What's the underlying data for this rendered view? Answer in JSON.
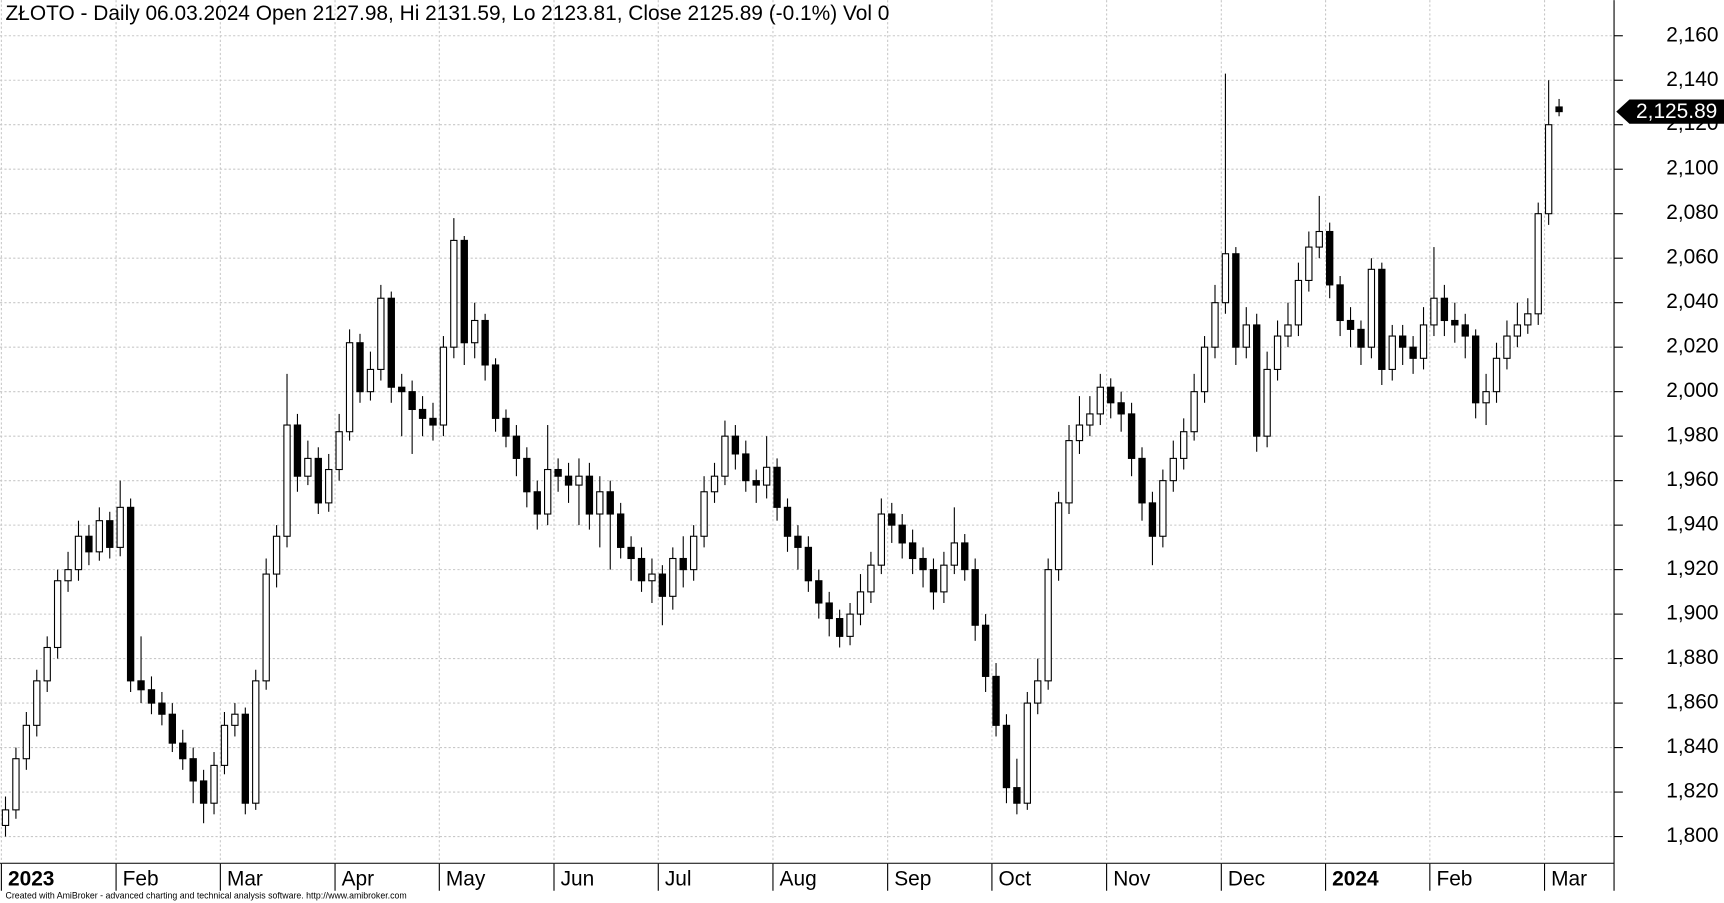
{
  "chart_data": {
    "type": "candlestick",
    "title": "ZŁOTO - Daily 06.03.2024 Open 2127.98, Hi 2131.59, Lo 2123.81, Close 2125.89 (-0.1%) Vol 0",
    "footer": "Created with AmiBroker - advanced charting and technical analysis software. http://www.amibroker.com",
    "categories": [
      "2023",
      null,
      null,
      null,
      null,
      null,
      null,
      null,
      null,
      null,
      null,
      "Feb",
      null,
      null,
      null,
      null,
      null,
      null,
      null,
      null,
      null,
      "Mar",
      null,
      null,
      null,
      null,
      null,
      null,
      null,
      null,
      null,
      null,
      "Apr",
      null,
      null,
      null,
      null,
      null,
      null,
      null,
      null,
      null,
      "May",
      null,
      null,
      null,
      null,
      null,
      null,
      null,
      null,
      null,
      null,
      "Jun",
      null,
      null,
      null,
      null,
      null,
      null,
      null,
      null,
      null,
      "Jul",
      null,
      null,
      null,
      null,
      null,
      null,
      null,
      null,
      null,
      null,
      "Aug",
      null,
      null,
      null,
      null,
      null,
      null,
      null,
      null,
      null,
      null,
      "Sep",
      null,
      null,
      null,
      null,
      null,
      null,
      null,
      null,
      null,
      "Oct",
      null,
      null,
      null,
      null,
      null,
      null,
      null,
      null,
      null,
      null,
      "Nov",
      null,
      null,
      null,
      null,
      null,
      null,
      null,
      null,
      null,
      null,
      "Dec",
      null,
      null,
      null,
      null,
      null,
      null,
      null,
      null,
      null,
      "2024",
      null,
      null,
      null,
      null,
      null,
      null,
      null,
      null,
      null,
      "Feb",
      null,
      null,
      null,
      null,
      null,
      null,
      null,
      null,
      null,
      null,
      "Mar",
      null
    ],
    "open": [
      1805,
      1812,
      1835,
      1850,
      1870,
      1885,
      1915,
      1920,
      1935,
      1928,
      1942,
      1930,
      1948,
      1870,
      1866,
      1860,
      1855,
      1842,
      1835,
      1825,
      1815,
      1832,
      1850,
      1855,
      1815,
      1870,
      1918,
      1935,
      1985,
      1962,
      1970,
      1950,
      1965,
      1982,
      2022,
      2000,
      2010,
      2042,
      2002,
      2000,
      1992,
      1988,
      1985,
      2020,
      2068,
      2022,
      2032,
      2012,
      1988,
      1980,
      1970,
      1955,
      1945,
      1965,
      1962,
      1958,
      1962,
      1945,
      1955,
      1945,
      1930,
      1925,
      1915,
      1918,
      1908,
      1925,
      1920,
      1935,
      1955,
      1962,
      1980,
      1972,
      1960,
      1958,
      1966,
      1948,
      1935,
      1930,
      1915,
      1905,
      1898,
      1890,
      1900,
      1910,
      1922,
      1945,
      1940,
      1932,
      1925,
      1920,
      1910,
      1922,
      1932,
      1920,
      1895,
      1872,
      1850,
      1822,
      1815,
      1860,
      1870,
      1920,
      1950,
      1978,
      1985,
      1990,
      2002,
      1995,
      1990,
      1970,
      1950,
      1935,
      1960,
      1970,
      1982,
      2000,
      2020,
      2040,
      2062,
      2020,
      2030,
      1980,
      2010,
      2025,
      2030,
      2050,
      2065,
      2072,
      2048,
      2032,
      2028,
      2020,
      2055,
      2010,
      2025,
      2020,
      2015,
      2030,
      2042,
      2032,
      2030,
      2025,
      1995,
      2000,
      2015,
      2025,
      2030,
      2035,
      2080,
      2127.98
    ],
    "high": [
      1818,
      1840,
      1856,
      1875,
      1890,
      1920,
      1928,
      1942,
      1940,
      1948,
      1946,
      1960,
      1952,
      1890,
      1872,
      1865,
      1860,
      1848,
      1840,
      1830,
      1838,
      1856,
      1860,
      1858,
      1875,
      1925,
      1940,
      2008,
      1990,
      1978,
      1975,
      1972,
      1990,
      2028,
      2026,
      2018,
      2048,
      2045,
      2008,
      2005,
      1998,
      1995,
      2025,
      2078,
      2070,
      2040,
      2035,
      2015,
      1992,
      1985,
      1975,
      1960,
      1985,
      1970,
      1968,
      1970,
      1968,
      1962,
      1960,
      1950,
      1935,
      1930,
      1925,
      1922,
      1930,
      1935,
      1940,
      1962,
      1968,
      1987,
      1985,
      1978,
      1965,
      1980,
      1970,
      1952,
      1940,
      1935,
      1920,
      1910,
      1902,
      1905,
      1918,
      1928,
      1952,
      1950,
      1945,
      1938,
      1930,
      1925,
      1928,
      1948,
      1936,
      1925,
      1900,
      1878,
      1855,
      1835,
      1865,
      1880,
      1925,
      1955,
      1985,
      1998,
      1998,
      2008,
      2006,
      2000,
      1995,
      1975,
      1955,
      1965,
      1978,
      1988,
      2008,
      2025,
      2048,
      2143,
      2065,
      2038,
      2035,
      2018,
      2032,
      2040,
      2058,
      2072,
      2088,
      2076,
      2052,
      2038,
      2032,
      2060,
      2058,
      2030,
      2030,
      2025,
      2038,
      2065,
      2048,
      2040,
      2035,
      2028,
      2008,
      2022,
      2032,
      2040,
      2042,
      2085,
      2140,
      2131.59
    ],
    "low": [
      1800,
      1808,
      1830,
      1845,
      1865,
      1880,
      1910,
      1915,
      1922,
      1924,
      1925,
      1926,
      1865,
      1860,
      1855,
      1850,
      1838,
      1830,
      1815,
      1806,
      1810,
      1828,
      1845,
      1810,
      1812,
      1866,
      1912,
      1930,
      1955,
      1958,
      1945,
      1946,
      1960,
      1978,
      1995,
      1996,
      2005,
      1995,
      1980,
      1972,
      1980,
      1978,
      1980,
      2015,
      2012,
      2015,
      2005,
      1982,
      1975,
      1962,
      1948,
      1938,
      1940,
      1955,
      1950,
      1940,
      1938,
      1930,
      1920,
      1925,
      1915,
      1910,
      1905,
      1895,
      1902,
      1912,
      1915,
      1930,
      1950,
      1958,
      1965,
      1955,
      1950,
      1952,
      1942,
      1928,
      1920,
      1910,
      1898,
      1890,
      1885,
      1886,
      1895,
      1905,
      1918,
      1932,
      1925,
      1918,
      1912,
      1902,
      1905,
      1918,
      1915,
      1888,
      1865,
      1845,
      1815,
      1810,
      1812,
      1855,
      1866,
      1915,
      1945,
      1972,
      1980,
      1985,
      1988,
      1982,
      1962,
      1942,
      1922,
      1930,
      1955,
      1965,
      1978,
      1995,
      2015,
      2035,
      2012,
      2015,
      1973,
      1975,
      2005,
      2020,
      2025,
      2045,
      2060,
      2042,
      2025,
      2020,
      2012,
      2015,
      2003,
      2005,
      2012,
      2008,
      2010,
      2025,
      2025,
      2022,
      2015,
      1988,
      1985,
      1995,
      2010,
      2020,
      2026,
      2030,
      2075,
      2123.81
    ],
    "close": [
      1812,
      1835,
      1850,
      1870,
      1885,
      1915,
      1920,
      1935,
      1928,
      1942,
      1930,
      1948,
      1870,
      1866,
      1860,
      1855,
      1842,
      1835,
      1825,
      1815,
      1832,
      1850,
      1855,
      1815,
      1870,
      1918,
      1935,
      1985,
      1962,
      1970,
      1950,
      1965,
      1982,
      2022,
      2000,
      2010,
      2042,
      2002,
      2000,
      1992,
      1988,
      1985,
      2020,
      2068,
      2022,
      2032,
      2012,
      1988,
      1980,
      1970,
      1955,
      1945,
      1965,
      1962,
      1958,
      1962,
      1945,
      1955,
      1945,
      1930,
      1925,
      1915,
      1918,
      1908,
      1925,
      1920,
      1935,
      1955,
      1962,
      1980,
      1972,
      1960,
      1958,
      1966,
      1948,
      1935,
      1930,
      1915,
      1905,
      1898,
      1890,
      1900,
      1910,
      1922,
      1945,
      1940,
      1932,
      1925,
      1920,
      1910,
      1922,
      1932,
      1920,
      1895,
      1872,
      1850,
      1822,
      1815,
      1860,
      1870,
      1920,
      1950,
      1978,
      1985,
      1990,
      2002,
      1995,
      1990,
      1970,
      1950,
      1935,
      1960,
      1970,
      1982,
      2000,
      2020,
      2040,
      2062,
      2020,
      2030,
      1980,
      2010,
      2025,
      2030,
      2050,
      2065,
      2072,
      2048,
      2032,
      2028,
      2020,
      2055,
      2010,
      2025,
      2020,
      2015,
      2030,
      2042,
      2032,
      2030,
      2025,
      1995,
      2000,
      2015,
      2025,
      2030,
      2035,
      2080,
      2120,
      2125.89
    ],
    "ylim": [
      1788,
      2176
    ],
    "yticks": [
      {
        "value": 1800,
        "label": "1,800"
      },
      {
        "value": 1820,
        "label": "1,820"
      },
      {
        "value": 1840,
        "label": "1,840"
      },
      {
        "value": 1860,
        "label": "1,860"
      },
      {
        "value": 1880,
        "label": "1,880"
      },
      {
        "value": 1900,
        "label": "1,900"
      },
      {
        "value": 1920,
        "label": "1,920"
      },
      {
        "value": 1940,
        "label": "1,940"
      },
      {
        "value": 1960,
        "label": "1,960"
      },
      {
        "value": 1980,
        "label": "1,980"
      },
      {
        "value": 2000,
        "label": "2,000"
      },
      {
        "value": 2020,
        "label": "2,020"
      },
      {
        "value": 2040,
        "label": "2,040"
      },
      {
        "value": 2060,
        "label": "2,060"
      },
      {
        "value": 2080,
        "label": "2,080"
      },
      {
        "value": 2100,
        "label": "2,100"
      },
      {
        "value": 2120,
        "label": "2,120"
      },
      {
        "value": 2140,
        "label": "2,140"
      },
      {
        "value": 2160,
        "label": "2,160"
      }
    ],
    "last_price": {
      "value": 2125.89,
      "label": "2,125.89"
    },
    "grid": true,
    "up_color": "#ffffff",
    "down_color": "#000000"
  }
}
